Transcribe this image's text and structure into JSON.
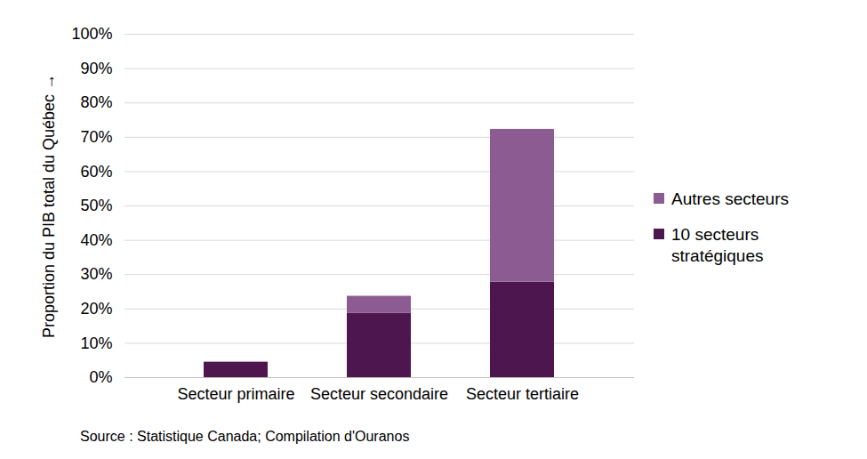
{
  "chart_data": {
    "type": "bar",
    "stacked": true,
    "ylabel": "Proportion du PIB total du Québec",
    "caption": "Source : Statistique Canada; Compilation d'Ouranos",
    "categories": [
      "Secteur primaire",
      "Secteur secondaire",
      "Secteur tertiaire"
    ],
    "series": [
      {
        "name": "10 secteurs stratégiques",
        "color": "#4e164f",
        "values": [
          4.5,
          18.7,
          27.8
        ]
      },
      {
        "name": "Autres secteurs",
        "color": "#8b5b92",
        "values": [
          0,
          5.0,
          44.5
        ]
      }
    ],
    "ylim": [
      0,
      100
    ],
    "yticks": [
      {
        "value": 0,
        "label": "0%"
      },
      {
        "value": 10,
        "label": "10%"
      },
      {
        "value": 20,
        "label": "20%"
      },
      {
        "value": 30,
        "label": "30%"
      },
      {
        "value": 40,
        "label": "40%"
      },
      {
        "value": 50,
        "label": "50%"
      },
      {
        "value": 60,
        "label": "60%"
      },
      {
        "value": 70,
        "label": "70%"
      },
      {
        "value": 80,
        "label": "80%"
      },
      {
        "value": 90,
        "label": "90%"
      },
      {
        "value": 100,
        "label": "100%"
      }
    ],
    "grid": true,
    "legend": "right"
  }
}
